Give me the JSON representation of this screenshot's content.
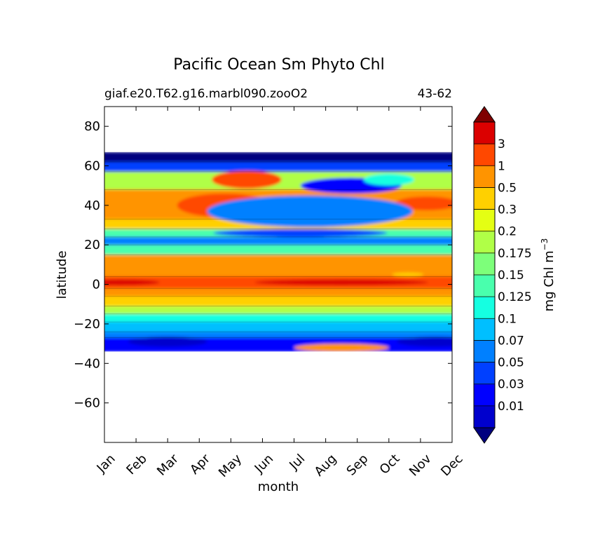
{
  "chart_data": {
    "type": "contour",
    "title": "Pacific Ocean Sm Phyto Chl",
    "subtitle_left": "giaf.e20.T62.g16.marbl090.zooO2",
    "subtitle_right": "43-62",
    "xlabel": "month",
    "ylabel": "latitude",
    "x_ticks": [
      "Jan",
      "Feb",
      "Mar",
      "Apr",
      "May",
      "Jun",
      "Jul",
      "Aug",
      "Sep",
      "Oct",
      "Nov",
      "Dec"
    ],
    "y_ticks": [
      80,
      60,
      40,
      20,
      0,
      -20,
      -40,
      -60
    ],
    "ylim": [
      -80,
      90
    ],
    "data_lat_range": [
      -34,
      67
    ],
    "colorbar": {
      "label": "mg Chl m",
      "label_exponent": "−3",
      "levels": [
        "0.01",
        "0.03",
        "0.05",
        "0.07",
        "0.1",
        "0.125",
        "0.15",
        "0.175",
        "0.2",
        "0.3",
        "0.5",
        "1",
        "3"
      ],
      "colors": [
        "#00007f",
        "#0000cd",
        "#0000ff",
        "#0040ff",
        "#0080ff",
        "#00bfff",
        "#15ffe1",
        "#49ffad",
        "#7dff7a",
        "#b0ff47",
        "#e4ff13",
        "#ffd000",
        "#ff9400",
        "#ff4800",
        "#db0000",
        "#7f0000"
      ]
    },
    "bands": [
      {
        "lat": [
          62,
          67
        ],
        "level": 0
      },
      {
        "lat": [
          57,
          62
        ],
        "level": 3
      },
      {
        "lat": [
          48,
          57
        ],
        "level": 9
      },
      {
        "lat": [
          33,
          48
        ],
        "level": 12
      },
      {
        "lat": [
          28,
          33
        ],
        "level": 11
      },
      {
        "lat": [
          24,
          28
        ],
        "level": 7
      },
      {
        "lat": [
          20,
          24
        ],
        "level": 4
      },
      {
        "lat": [
          15,
          20
        ],
        "level": 7
      },
      {
        "lat": [
          4,
          15
        ],
        "level": 12
      },
      {
        "lat": [
          -2,
          4
        ],
        "level": 13
      },
      {
        "lat": [
          -6,
          -2
        ],
        "level": 12
      },
      {
        "lat": [
          -11,
          -6
        ],
        "level": 11
      },
      {
        "lat": [
          -15,
          -11
        ],
        "level": 9
      },
      {
        "lat": [
          -19,
          -15
        ],
        "level": 6
      },
      {
        "lat": [
          -24,
          -19
        ],
        "level": 5
      },
      {
        "lat": [
          -27,
          -24
        ],
        "level": 4
      },
      {
        "lat": [
          -34,
          -27
        ],
        "level": 2
      }
    ],
    "patches": [
      {
        "month": 4.2,
        "lat": 40,
        "w": 1.3,
        "h": 4,
        "level": 14
      },
      {
        "month": 3.8,
        "lat": 40,
        "w": 3.0,
        "h": 12,
        "level": 13
      },
      {
        "month": 4.5,
        "lat": 53,
        "w": 2.2,
        "h": 9,
        "level": 13
      },
      {
        "month": 0.5,
        "lat": 1,
        "w": 2.5,
        "h": 3,
        "level": 14
      },
      {
        "month": 7.5,
        "lat": 1,
        "w": 5.5,
        "h": 3,
        "level": 14
      },
      {
        "month": 7.8,
        "lat": 50,
        "w": 3.2,
        "h": 8,
        "level": 2
      },
      {
        "month": 9.0,
        "lat": 53,
        "w": 1.6,
        "h": 6,
        "level": 6
      },
      {
        "month": 10.2,
        "lat": 41,
        "w": 2.0,
        "h": 7,
        "level": 13
      },
      {
        "month": 6.5,
        "lat": 37,
        "w": 6.5,
        "h": 16,
        "level": 4
      },
      {
        "month": 6.2,
        "lat": 26,
        "w": 5.5,
        "h": 4,
        "level": 3
      },
      {
        "month": 7.5,
        "lat": -32,
        "w": 3.0,
        "h": 4,
        "level": 12
      },
      {
        "month": 2.0,
        "lat": -29,
        "w": 2.5,
        "h": 5,
        "level": 1
      },
      {
        "month": 10.5,
        "lat": -29,
        "w": 2.5,
        "h": 5,
        "level": 1
      },
      {
        "month": 9.6,
        "lat": 5,
        "w": 1.0,
        "h": 2,
        "level": 11
      }
    ]
  }
}
